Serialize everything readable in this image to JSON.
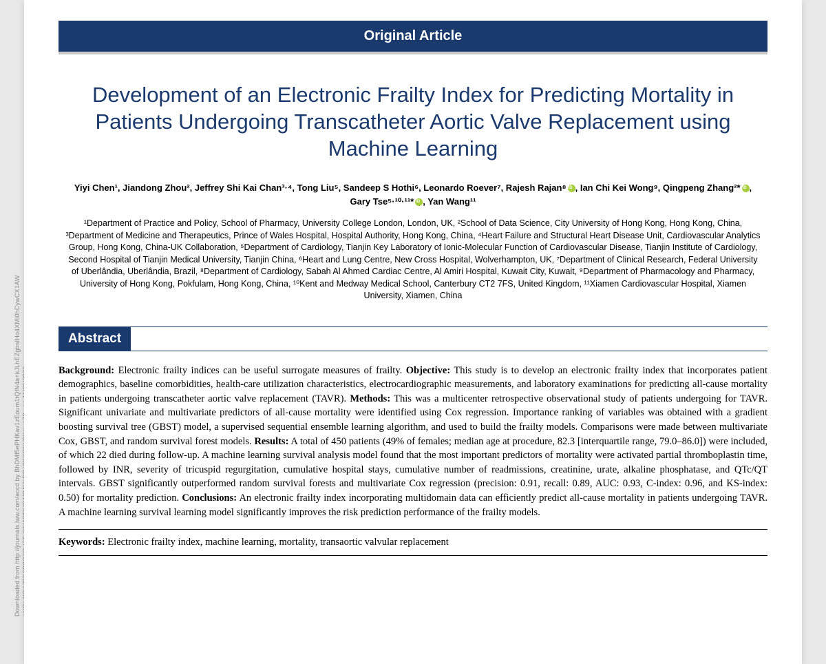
{
  "banner": "Original Article",
  "title": "Development of an Electronic Frailty Index for Predicting Mortality in Patients Undergoing Transcatheter Aortic Valve Replacement using Machine Learning",
  "authors_line1": "Yiyi Chen¹, Jiandong Zhou², Jeffrey Shi Kai Chan³·⁴, Tong Liu⁵, Sandeep S Hothi⁶, Leonardo Roever⁷, Rajesh Rajan⁸",
  "authors_line1b": ", Ian Chi Kei Wong⁹, Qingpeng Zhang²*",
  "authors_line1c": ",",
  "authors_line2a": "Gary Tse⁵·¹⁰·¹¹*",
  "authors_line2b": ", Yan Wang¹¹",
  "affiliations": "¹Department of Practice and Policy, School of Pharmacy, University College London, London, UK, ²School of Data Science, City University of Hong Kong, Hong Kong, China, ³Department of Medicine and Therapeutics, Prince of Wales Hospital, Hospital Authority, Hong Kong, China, ⁴Heart Failure and Structural Heart Disease Unit, Cardiovascular Analytics Group, Hong Kong, China-UK Collaboration, ⁵Department of Cardiology, Tianjin Key Laboratory of Ionic-Molecular Function of Cardiovascular Disease, Tianjin Institute of Cardiology, Second Hospital of Tianjin Medical University, Tianjin China, ⁶Heart and Lung Centre, New Cross Hospital, Wolverhampton, UK, ⁷Department of Clinical Research, Federal University of Uberlândia, Uberlândia, Brazil, ⁸Department of Cardiology, Sabah Al Ahmed Cardiac Centre, Al Amiri Hospital, Kuwait City, Kuwait, ⁹Department of Pharmacology and Pharmacy, University of Hong Kong, Pokfulam, Hong Kong, China, ¹⁰Kent and Medway Medical School, Canterbury CT2 7FS, United Kingdom, ¹¹Xiamen Cardiovascular Hospital, Xiamen University, Xiamen, China",
  "abstract_header": "Abstract",
  "abs": {
    "bg_label": "Background:",
    "bg_text": " Electronic frailty indices can be useful surrogate measures of frailty. ",
    "obj_label": "Objective:",
    "obj_text": " This study is to develop an electronic frailty index that incorporates patient demographics, baseline comorbidities, health-care utilization characteristics, electrocardiographic measurements, and laboratory examinations for predicting  all-cause mortality in patients undergoing transcatheter aortic valve replacement (TAVR). ",
    "meth_label": "Methods:",
    "meth_text": " This was a multicenter retrospective observational study of patients undergoing for TAVR. Significant univariate and multivariate predictors of all-cause mortality were identified using Cox regression. Importance ranking of variables was obtained with a gradient boosting survival tree (GBST) model, a supervised sequential ensemble learning algorithm, and used to build the frailty models. Comparisons were made between multivariate Cox, GBST, and random survival forest models. ",
    "res_label": "Results:",
    "res_text": " A total of 450 patients (49% of females; median age at procedure, 82.3 [interquartile range, 79.0–86.0]) were included, of which 22 died during follow-up. A machine learning survival analysis model found that the most important predictors of mortality were activated partial thromboplastin time, followed by INR, severity of tricuspid regurgitation, cumulative hospital stays, cumulative number of readmissions, creatinine, urate, alkaline phosphatase, and QTc/QT intervals. GBST significantly outperformed random survival forests and multivariate Cox regression (precision: 0.91, recall: 0.89, AUC: 0.93, C-index: 0.96, and KS-index: 0.50) for mortality prediction. ",
    "conc_label": "Conclusions:",
    "conc_text": " An electronic frailty index incorporating multidomain data can efficiently predict all-cause mortality in patients undergoing TAVR. A machine learning survival learning model significantly improves the risk prediction performance of the frailty models."
  },
  "keywords_label": "Keywords:",
  "keywords_text": " Electronic frailty index, machine learning, mortality, transaortic valvular replacement",
  "watermark": "Downloaded from http://journals.lww.com/accd by BhDMf5ePHKav1zEoum1tQfN4a+kJLhEZgbsIHo4XMi0hCywCX1AW nYQp/IlQrHD3i3D0OdRyi7TvSFl4Cf3VC4/OAVpDDa8KKGKV0Ymy+78= on 11/06/2023"
}
